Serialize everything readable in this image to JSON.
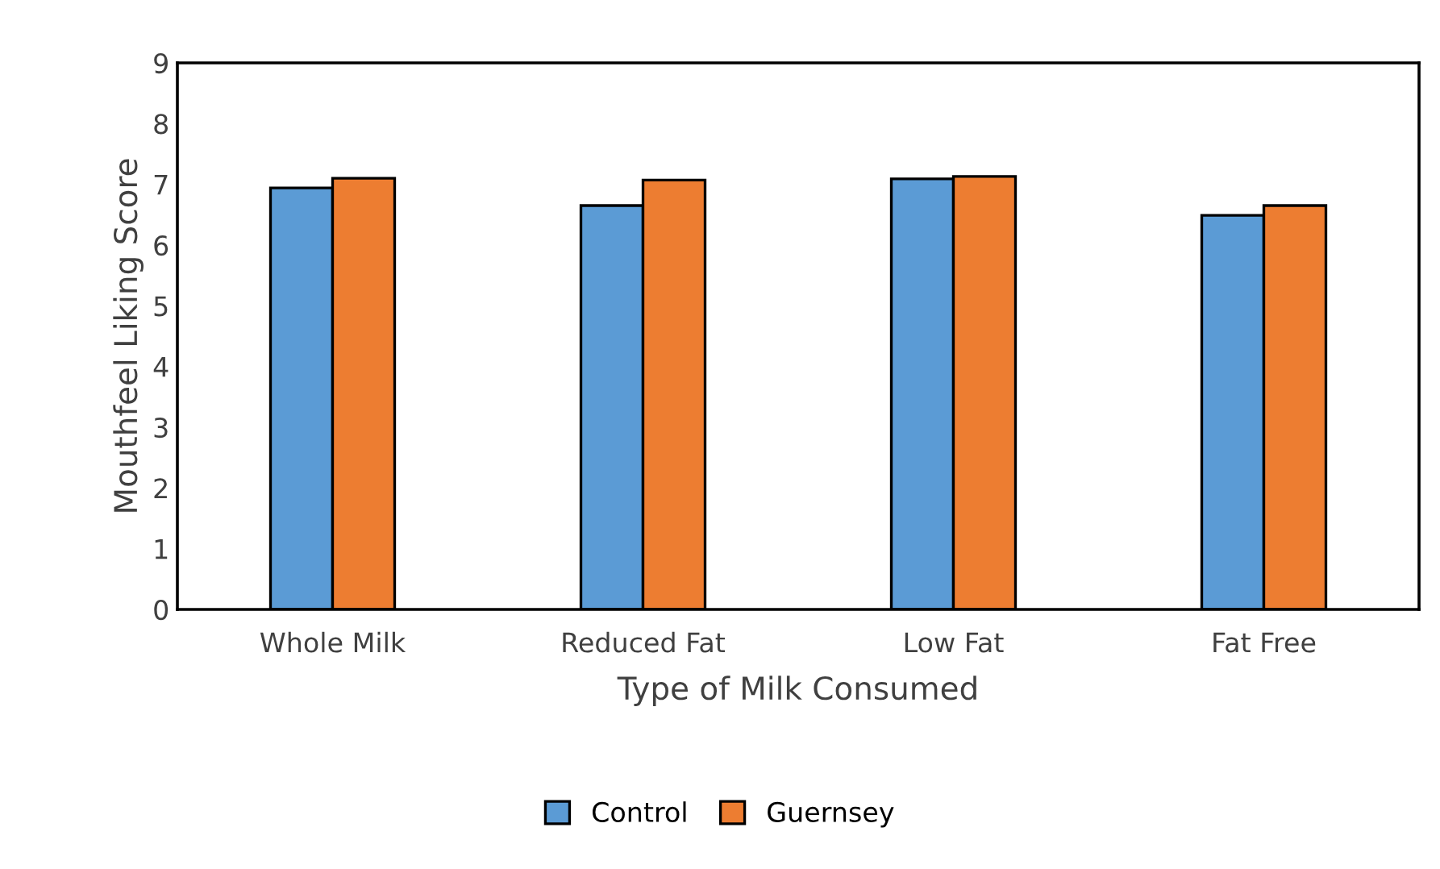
{
  "chart_data": {
    "type": "bar",
    "xlabel": "Type of Milk Consumed",
    "ylabel": "Mouthfeel Liking Score",
    "categories": [
      "Whole Milk",
      "Reduced Fat",
      "Low Fat",
      "Fat Free"
    ],
    "series": [
      {
        "name": "Control",
        "color": "#5b9bd5",
        "values": [
          6.94,
          6.65,
          7.09,
          6.49
        ]
      },
      {
        "name": "Guernsey",
        "color": "#ed7d31",
        "values": [
          7.1,
          7.07,
          7.13,
          6.65
        ]
      }
    ],
    "ylim": [
      0,
      9
    ],
    "yticks": [
      0,
      1,
      2,
      3,
      4,
      5,
      6,
      7,
      8,
      9
    ],
    "grid": false,
    "legend": "bottom"
  }
}
